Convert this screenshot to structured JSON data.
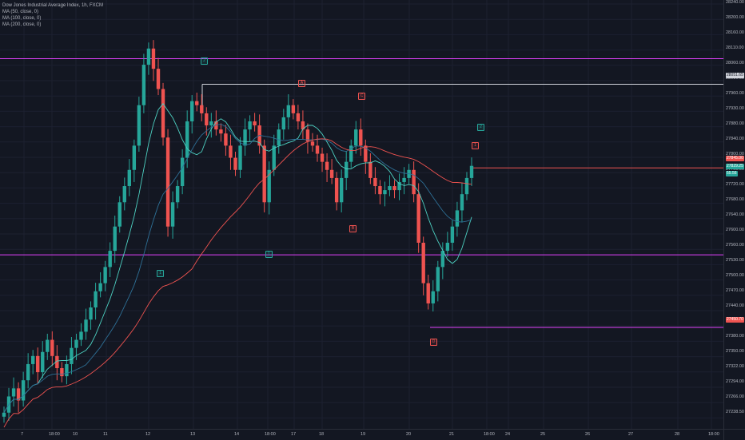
{
  "chart_title": "Dow Jones Industrial Average Index, 1h, FXCM",
  "indicators": [
    "MA (50, close, 0)",
    "MA (100, close, 0)",
    "MA (200, close, 0)"
  ],
  "colors": {
    "background": "#131722",
    "bull": "#26a69a",
    "bear": "#ef5350",
    "level_line": "#e040fb",
    "axis_text": "#b2b5be"
  },
  "price_axis": {
    "ticks": [
      "28240.00",
      "28200.00",
      "28160.00",
      "28110.00",
      "28060.00",
      "28010.00",
      "27960.00",
      "27930.00",
      "27880.00",
      "27840.00",
      "27800.00",
      "27760.00",
      "27720.00",
      "27680.00",
      "27640.00",
      "27600.00",
      "27560.00",
      "27530.00",
      "27500.00",
      "27470.00",
      "27440.00",
      "27410.00",
      "27380.00",
      "27350.00",
      "27322.00",
      "27294.00",
      "27266.00",
      "27238.50"
    ],
    "tags": [
      {
        "label": "28051.65",
        "kind": "white"
      },
      {
        "label": "27845.00",
        "kind": "red"
      },
      {
        "label": "27829.25",
        "kind": "teal"
      },
      {
        "label": "55.56",
        "kind": "teal"
      },
      {
        "label": "27450.70",
        "kind": "red"
      }
    ]
  },
  "time_axis": {
    "labels": [
      "7",
      "18:00",
      "10",
      "11",
      "12",
      "13",
      "14",
      "18:00",
      "17",
      "18",
      "19",
      "20",
      "21",
      "18:00",
      "24",
      "25",
      "26",
      "27",
      "28",
      "18:00"
    ]
  },
  "wave_labels": [
    {
      "text": "2",
      "color": "teal"
    },
    {
      "text": "1",
      "color": "teal"
    },
    {
      "text": "1",
      "color": "teal"
    },
    {
      "text": "2",
      "color": "teal"
    },
    {
      "text": "A",
      "color": "red"
    },
    {
      "text": "C",
      "color": "red"
    },
    {
      "text": "B",
      "color": "red"
    },
    {
      "text": "1",
      "color": "red"
    },
    {
      "text": "D",
      "color": "red"
    }
  ],
  "chart_data": {
    "type": "candlestick",
    "symbol": "Dow Jones Industrial Average Index",
    "interval": "1h",
    "source": "FXCM",
    "horizontal_levels": [
      28115,
      28051.65,
      27845,
      27630,
      27450.7
    ],
    "close_series": [
      27240,
      27280,
      27300,
      27270,
      27320,
      27360,
      27380,
      27340,
      27390,
      27420,
      27380,
      27350,
      27330,
      27360,
      27400,
      27420,
      27440,
      27470,
      27500,
      27540,
      27560,
      27600,
      27640,
      27700,
      27760,
      27800,
      27840,
      27900,
      28000,
      28100,
      28140,
      28090,
      28040,
      27920,
      27700,
      27760,
      27800,
      27870,
      27960,
      28010,
      28000,
      27980,
      27950,
      27960,
      27940,
      27930,
      27900,
      27870,
      27840,
      27900,
      27940,
      27960,
      27950,
      27900,
      27760,
      27840,
      27900,
      27940,
      27970,
      28000,
      27980,
      27960,
      27940,
      27910,
      27900,
      27880,
      27860,
      27840,
      27820,
      27760,
      27820,
      27860,
      27900,
      27940,
      27900,
      27860,
      27820,
      27800,
      27780,
      27790,
      27800,
      27790,
      27810,
      27820,
      27840,
      27780,
      27660,
      27560,
      27510,
      27540,
      27600,
      27640,
      27660,
      27700,
      27740,
      27780,
      27820,
      27850
    ],
    "ylim": [
      27200,
      28260
    ]
  }
}
